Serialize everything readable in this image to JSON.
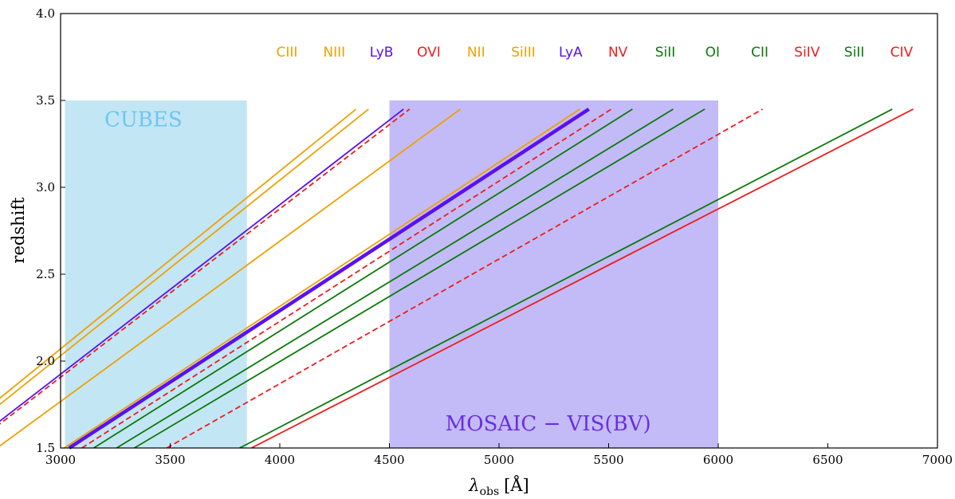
{
  "chart_data": {
    "type": "line",
    "xlabel": "λ",
    "xlabel_sub": "obs",
    "xlabel_unit": "[Å]",
    "ylabel": "redshift",
    "xlim": [
      3000,
      7000
    ],
    "ylim": [
      1.5,
      4.0
    ],
    "xticks": [
      3000,
      3500,
      4000,
      4500,
      5000,
      5500,
      6000,
      6500,
      7000
    ],
    "yticks": [
      1.5,
      2.0,
      2.5,
      3.0,
      3.5,
      4.0
    ],
    "regions": [
      {
        "name": "CUBES",
        "x": [
          3020,
          3850
        ],
        "y": [
          1.5,
          3.5
        ],
        "color": "#87ceeb",
        "label_color": "#6ec6f0",
        "label_pos": [
          3200,
          3.35
        ]
      },
      {
        "name": "MOSAIC − VIS(BV)",
        "x": [
          4500,
          6000
        ],
        "y": [
          1.5,
          3.5
        ],
        "color": "#7b68ee",
        "label_color": "#6a2ee0",
        "label_pos": [
          4755,
          1.6
        ]
      }
    ],
    "series": [
      {
        "name": "CIII",
        "rest": 977.02,
        "color": "#f0a000",
        "style": "solid",
        "width": 1.8
      },
      {
        "name": "NIII",
        "rest": 989.8,
        "color": "#f0a000",
        "style": "solid",
        "width": 1.8
      },
      {
        "name": "LyB",
        "rest": 1025.72,
        "color": "#5b10f0",
        "style": "solid",
        "width": 1.8
      },
      {
        "name": "OVI",
        "rest": 1031.9,
        "color": "#ee1c1c",
        "style": "dashed",
        "width": 1.8
      },
      {
        "name": "NII",
        "rest": 1083.99,
        "color": "#f0a000",
        "style": "solid",
        "width": 1.8
      },
      {
        "name": "SiIII",
        "rest": 1206.5,
        "color": "#f0a000",
        "style": "solid",
        "width": 1.8
      },
      {
        "name": "LyA",
        "rest": 1215.67,
        "color": "#5b10f0",
        "style": "solid",
        "width": 4.5
      },
      {
        "name": "NV",
        "rest": 1238.82,
        "color": "#ee1c1c",
        "style": "dashed",
        "width": 1.8
      },
      {
        "name": "SiII",
        "rest": 1260.42,
        "color": "#0a7a0a",
        "style": "solid",
        "width": 1.8
      },
      {
        "name": "OI",
        "rest": 1302.17,
        "color": "#0a7a0a",
        "style": "solid",
        "width": 1.8
      },
      {
        "name": "CII",
        "rest": 1334.53,
        "color": "#0a7a0a",
        "style": "solid",
        "width": 1.8
      },
      {
        "name": "SiIV",
        "rest": 1393.76,
        "color": "#ee1c1c",
        "style": "dashed",
        "width": 1.8
      },
      {
        "name": "SiII",
        "rest": 1526.71,
        "color": "#0a7a0a",
        "style": "solid",
        "width": 1.8
      },
      {
        "name": "CIV",
        "rest": 1548.2,
        "color": "#ee1c1c",
        "style": "solid",
        "width": 1.8
      }
    ],
    "z_range": [
      1.5,
      3.45
    ],
    "line_label_z": 3.78,
    "grid": false,
    "legend": "none"
  }
}
